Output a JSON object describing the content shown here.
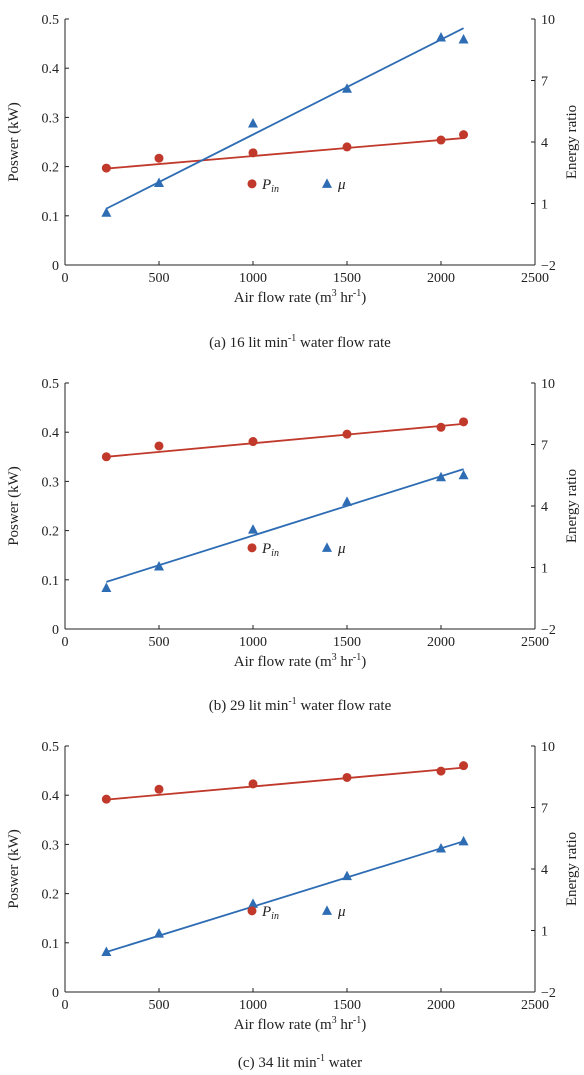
{
  "figure": {
    "panels": [
      {
        "caption": {
          "pre": "(a) 16 lit min",
          "sup": "-1",
          "post": " water flow rate"
        },
        "xlabel": {
          "pre": "Air flow rate (m",
          "sup1": "3",
          "mid": " hr",
          "sup2": "-1",
          "post": ")"
        },
        "ylabel_left": "Poswer (kW)",
        "ylabel_right": "Energy ratio",
        "legend": {
          "p_main": "P",
          "p_sub": "in",
          "mu": "μ"
        }
      },
      {
        "caption": {
          "pre": "(b) 29 lit min",
          "sup": "-1",
          "post": " water flow rate"
        },
        "xlabel": {
          "pre": "Air flow rate (m",
          "sup1": "3",
          "mid": " hr",
          "sup2": "-1",
          "post": ")"
        },
        "ylabel_left": "Poswer (kW)",
        "ylabel_right": "Energy ratio",
        "legend": {
          "p_main": "P",
          "p_sub": "in",
          "mu": "μ"
        }
      },
      {
        "caption": {
          "pre": "(c) 34 lit min",
          "sup": "-1",
          "post": " water"
        },
        "xlabel": {
          "pre": "Air flow rate (m",
          "sup1": "3",
          "mid": " hr",
          "sup2": "-1",
          "post": ")"
        },
        "ylabel_left": "Poswer (kW)",
        "ylabel_right": "Energy ratio",
        "legend": {
          "p_main": "P",
          "p_sub": "in",
          "mu": "μ"
        }
      }
    ]
  },
  "chart_data": [
    {
      "type": "scatter",
      "x": [
        220,
        500,
        1000,
        1500,
        2000,
        2120
      ],
      "xlim": [
        0,
        2500
      ],
      "xticks": [
        "0",
        "500",
        "1000",
        "1500",
        "2000",
        "2500"
      ],
      "ylim_left": [
        0,
        0.5
      ],
      "yticks_left": [
        "0",
        "0.1",
        "0.2",
        "0.3",
        "0.4",
        "0.5"
      ],
      "ylim_right": [
        -2,
        10
      ],
      "yticks_right": [
        "−2",
        "1",
        "4",
        "7",
        "10"
      ],
      "series": [
        {
          "name": "P_in",
          "axis": "left",
          "marker": "circle",
          "color": "#c0392b",
          "y": [
            0.197,
            0.217,
            0.228,
            0.24,
            0.254,
            0.265
          ],
          "fit": [
            [
              220,
              0.196
            ],
            [
              2120,
              0.258
            ]
          ]
        },
        {
          "name": "μ",
          "axis": "right",
          "marker": "triangle",
          "color": "#2e6db4",
          "y": [
            0.55,
            2.0,
            4.9,
            6.6,
            9.1,
            9.0
          ],
          "fit": [
            [
              220,
              0.75
            ],
            [
              2120,
              9.55
            ]
          ]
        }
      ]
    },
    {
      "type": "scatter",
      "x": [
        220,
        500,
        1000,
        1500,
        2000,
        2120
      ],
      "xlim": [
        0,
        2500
      ],
      "xticks": [
        "0",
        "500",
        "1000",
        "1500",
        "2000",
        "2500"
      ],
      "ylim_left": [
        0,
        0.5
      ],
      "yticks_left": [
        "0",
        "0.1",
        "0.2",
        "0.3",
        "0.4",
        "0.5"
      ],
      "ylim_right": [
        -2,
        10
      ],
      "yticks_right": [
        "−2",
        "1",
        "4",
        "7",
        "10"
      ],
      "series": [
        {
          "name": "P_in",
          "axis": "left",
          "marker": "circle",
          "color": "#c0392b",
          "y": [
            0.35,
            0.372,
            0.381,
            0.396,
            0.41,
            0.421
          ],
          "fit": [
            [
              220,
              0.35
            ],
            [
              2120,
              0.417
            ]
          ]
        },
        {
          "name": "μ",
          "axis": "right",
          "marker": "triangle",
          "color": "#2e6db4",
          "y": [
            0.0,
            1.05,
            2.85,
            4.2,
            5.4,
            5.5
          ],
          "fit": [
            [
              220,
              0.3
            ],
            [
              2120,
              5.8
            ]
          ]
        }
      ]
    },
    {
      "type": "scatter",
      "x": [
        220,
        500,
        1000,
        1500,
        2000,
        2120
      ],
      "xlim": [
        0,
        2500
      ],
      "xticks": [
        "0",
        "500",
        "1000",
        "1500",
        "2000",
        "2500"
      ],
      "ylim_left": [
        0,
        0.5
      ],
      "yticks_left": [
        "0",
        "0.1",
        "0.2",
        "0.3",
        "0.4",
        "0.5"
      ],
      "ylim_right": [
        -2,
        10
      ],
      "yticks_right": [
        "−2",
        "1",
        "4",
        "7",
        "10"
      ],
      "series": [
        {
          "name": "P_in",
          "axis": "left",
          "marker": "circle",
          "color": "#c0392b",
          "y": [
            0.392,
            0.412,
            0.423,
            0.436,
            0.449,
            0.46
          ],
          "fit": [
            [
              220,
              0.391
            ],
            [
              2120,
              0.456
            ]
          ]
        },
        {
          "name": "μ",
          "axis": "right",
          "marker": "triangle",
          "color": "#2e6db4",
          "y": [
            -0.05,
            0.85,
            2.3,
            3.65,
            5.0,
            5.35
          ],
          "fit": [
            [
              220,
              -0.05
            ],
            [
              2120,
              5.35
            ]
          ]
        }
      ]
    }
  ]
}
